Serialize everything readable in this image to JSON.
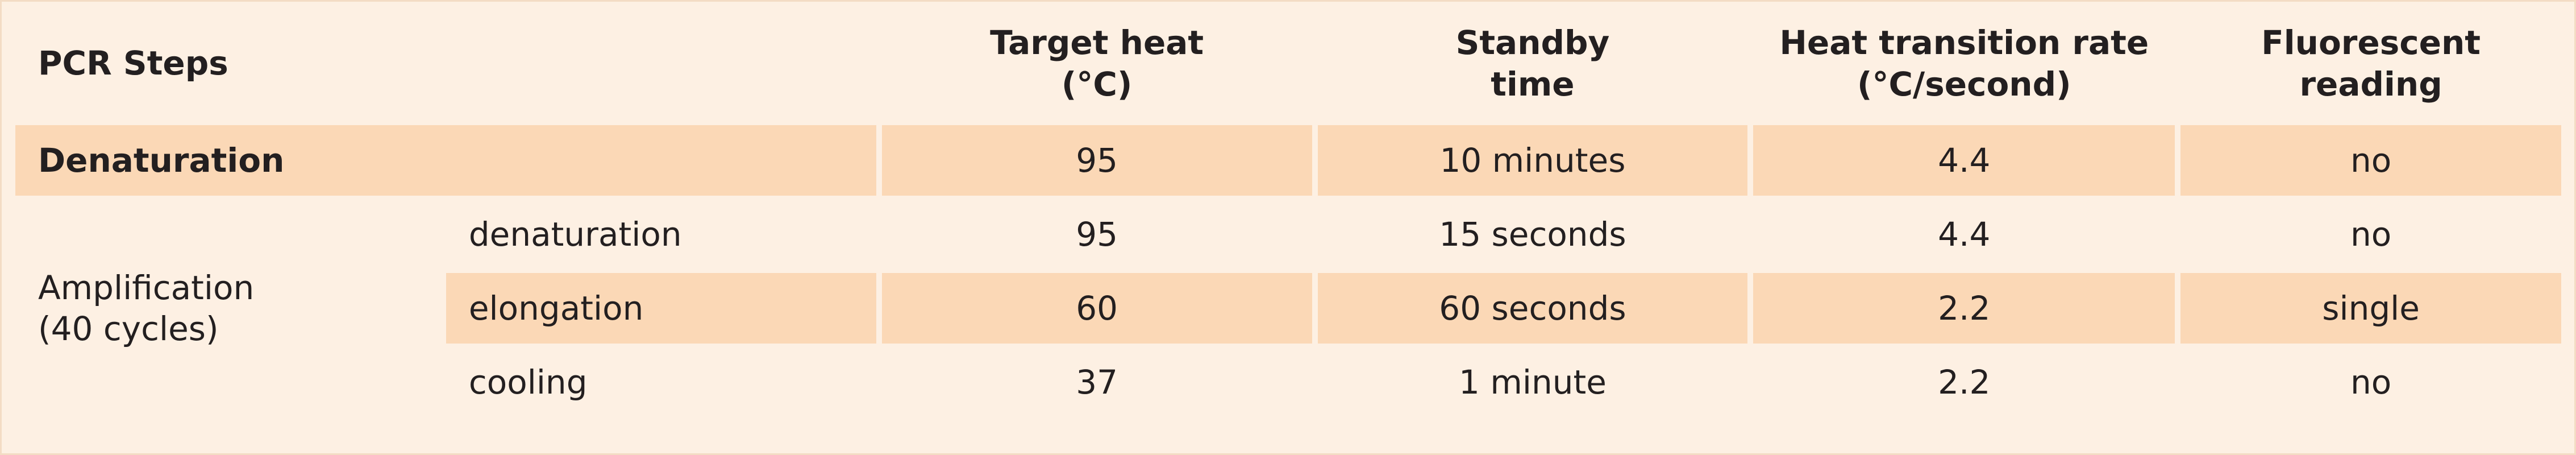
{
  "header": {
    "columns": [
      [
        "PCR Steps"
      ],
      [
        "Target heat",
        "(°C)"
      ],
      [
        "Standby",
        "time"
      ],
      [
        "Heat transition rate",
        "(°C/second)"
      ],
      [
        "Fluorescent",
        "reading"
      ]
    ]
  },
  "denaturation": {
    "step": "Denaturation",
    "values": [
      95,
      "10 minutes",
      4.4,
      "no"
    ]
  },
  "amplification": {
    "label": [
      "Amplification",
      "(40 cycles)"
    ],
    "substeps": [
      {
        "name": "denaturation",
        "values": [
          95,
          "15 seconds",
          4.4,
          "no"
        ]
      },
      {
        "name": "elongation",
        "values": [
          60,
          "60 seconds",
          2.2,
          "single"
        ]
      },
      {
        "name": "cooling",
        "values": [
          37,
          "1 minute",
          2.2,
          "no"
        ]
      }
    ]
  }
}
